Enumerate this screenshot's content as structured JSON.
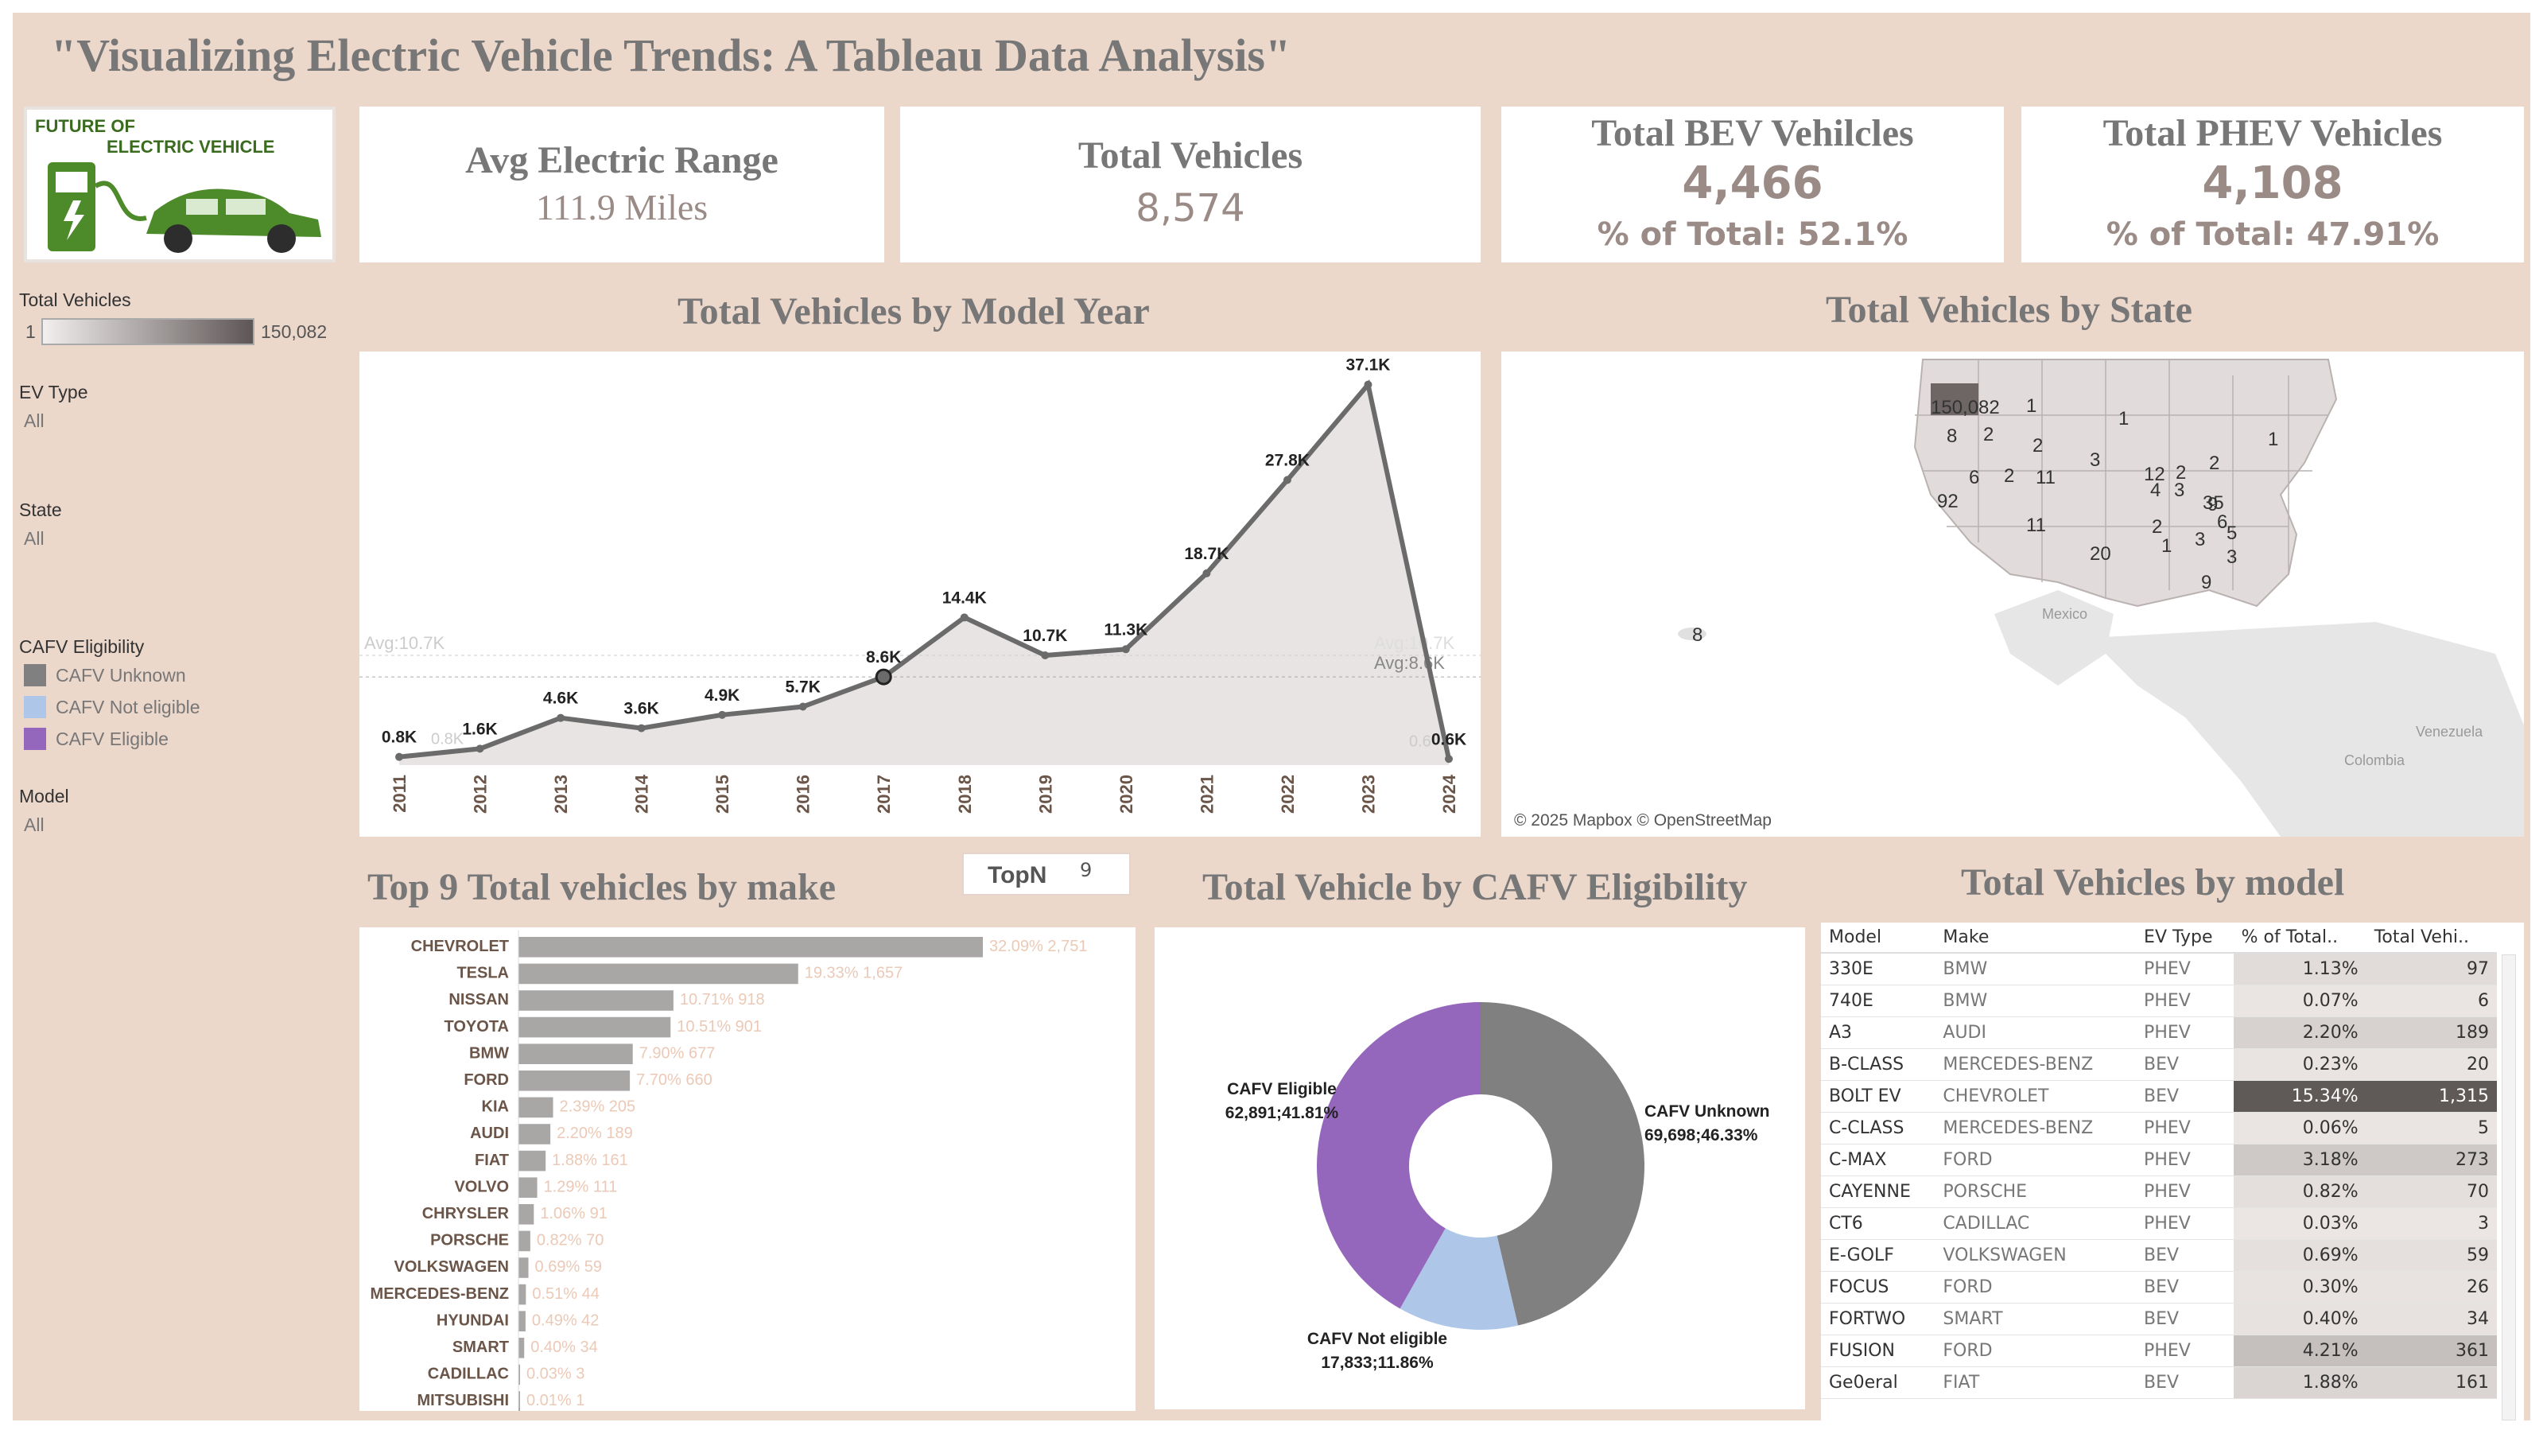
{
  "dashboard": {
    "title": "\"Visualizing Electric Vehicle Trends: A Tableau Data Analysis\""
  },
  "logo": {
    "line1": "FUTURE OF",
    "line2": "ELECTRIC VEHICLE"
  },
  "kpis": {
    "range_title": "Avg Electric Range",
    "range_value": "111.9 Miles",
    "total_title": "Total Vehicles",
    "total_value": "8,574",
    "bev_title": "Total BEV Vehilcles",
    "bev_value": "4,466",
    "bev_pct": "% of Total: 52.1%",
    "phev_title": "Total PHEV Vehicles",
    "phev_value": "4,108",
    "phev_pct": "% of Total: 47.91%"
  },
  "filters": {
    "total_vehicles_label": "Total Vehicles",
    "range_min": "1",
    "range_max": "150,082",
    "ev_type_label": "EV Type",
    "ev_type_value": "All",
    "state_label": "State",
    "state_value": "All",
    "cafv_label": "CAFV Eligibility",
    "cafv_items": [
      {
        "label": "CAFV Unknown",
        "color": "#808080"
      },
      {
        "label": "CAFV Not eligible",
        "color": "#aec7e8"
      },
      {
        "label": "CAFV Eligible",
        "color": "#9467bd"
      }
    ],
    "model_label": "Model",
    "model_value": "All"
  },
  "line_section": {
    "title": "Total Vehicles by Model Year",
    "avg_left": "Avg:10.7K",
    "avg_right_faded": "Avg:10.7K",
    "avg_right": "Avg:8.6K",
    "faded_start": "0.8K",
    "faded_end": "0.6"
  },
  "map_section": {
    "title": "Total Vehicles by State",
    "credit": "© 2025 Mapbox © OpenStreetMap",
    "places": [
      "Mexico",
      "Venezuela",
      "Colombia"
    ],
    "labels": [
      "150,082",
      "1",
      "8",
      "2",
      "2",
      "1",
      "6",
      "2",
      "11",
      "3",
      "12",
      "2",
      "2",
      "1",
      "9",
      "92",
      "4",
      "3",
      "35",
      "11",
      "2",
      "6",
      "20",
      "1",
      "3",
      "5",
      "3",
      "9",
      "8"
    ]
  },
  "bar_section": {
    "title": "Top 9 Total vehicles by make",
    "topn_label": "TopN",
    "topn_value": "9"
  },
  "pie_section": {
    "title": "Total Vehicle by CAFV Eligibility"
  },
  "table_section": {
    "title": "Total Vehicles by model",
    "columns": [
      "Model",
      "Make",
      "EV Type",
      "% of Total..",
      "Total Vehi.."
    ],
    "rows": [
      [
        "330E",
        "BMW",
        "PHEV",
        "1.13%",
        "97"
      ],
      [
        "740E",
        "BMW",
        "PHEV",
        "0.07%",
        "6"
      ],
      [
        "A3",
        "AUDI",
        "PHEV",
        "2.20%",
        "189"
      ],
      [
        "B-CLASS",
        "MERCEDES-BENZ",
        "BEV",
        "0.23%",
        "20"
      ],
      [
        "BOLT EV",
        "CHEVROLET",
        "BEV",
        "15.34%",
        "1,315"
      ],
      [
        "C-CLASS",
        "MERCEDES-BENZ",
        "PHEV",
        "0.06%",
        "5"
      ],
      [
        "C-MAX",
        "FORD",
        "PHEV",
        "3.18%",
        "273"
      ],
      [
        "CAYENNE",
        "PORSCHE",
        "PHEV",
        "0.82%",
        "70"
      ],
      [
        "CT6",
        "CADILLAC",
        "PHEV",
        "0.03%",
        "3"
      ],
      [
        "E-GOLF",
        "VOLKSWAGEN",
        "BEV",
        "0.69%",
        "59"
      ],
      [
        "FOCUS",
        "FORD",
        "BEV",
        "0.30%",
        "26"
      ],
      [
        "FORTWO",
        "SMART",
        "BEV",
        "0.40%",
        "34"
      ],
      [
        "FUSION",
        "FORD",
        "PHEV",
        "4.21%",
        "361"
      ],
      [
        "Ge0eral",
        "FIAT",
        "BEV",
        "1.88%",
        "161"
      ]
    ]
  },
  "chart_data": [
    {
      "type": "line",
      "title": "Total Vehicles by Model Year",
      "x": [
        "2011",
        "2012",
        "2013",
        "2014",
        "2015",
        "2016",
        "2017",
        "2018",
        "2019",
        "2020",
        "2021",
        "2022",
        "2023",
        "2024"
      ],
      "values": [
        0.8,
        1.6,
        4.6,
        3.6,
        4.9,
        5.7,
        8.6,
        14.4,
        10.7,
        11.3,
        18.7,
        27.8,
        37.1,
        0.6
      ],
      "labels": [
        "0.8K",
        "1.6K",
        "4.6K",
        "3.6K",
        "4.9K",
        "5.7K",
        "8.6K",
        "14.4K",
        "10.7K",
        "11.3K",
        "18.7K",
        "27.8K",
        "37.1K",
        "0.6K"
      ],
      "unit": "K",
      "ylim": [
        0,
        38
      ],
      "reference_lines": [
        {
          "label": "Avg:10.7K",
          "value": 10.7
        },
        {
          "label": "Avg:8.6K",
          "value": 8.6
        }
      ],
      "highlight": "2017"
    },
    {
      "type": "bar",
      "title": "Top 9 Total vehicles by make",
      "categories": [
        "CHEVROLET",
        "TESLA",
        "NISSAN",
        "TOYOTA",
        "BMW",
        "FORD",
        "KIA",
        "AUDI",
        "FIAT",
        "VOLVO",
        "CHRYSLER",
        "PORSCHE",
        "VOLKSWAGEN",
        "MERCEDES-BENZ",
        "HYUNDAI",
        "SMART",
        "CADILLAC",
        "MITSUBISHI"
      ],
      "values": [
        2751,
        1657,
        918,
        901,
        677,
        660,
        205,
        189,
        161,
        111,
        91,
        70,
        59,
        44,
        42,
        34,
        3,
        1
      ],
      "labels": [
        "32.09% 2,751",
        "19.33% 1,657",
        "10.71% 918",
        "10.51% 901",
        "7.90% 677",
        "7.70% 660",
        "2.39% 205",
        "2.20% 189",
        "1.88% 161",
        "1.29% 111",
        "1.06% 91",
        "0.82% 70",
        "0.69% 59",
        "0.51% 44",
        "0.49% 42",
        "0.40% 34",
        "0.03% 3",
        "0.01% 1"
      ],
      "xlim": [
        0,
        2751
      ]
    },
    {
      "type": "pie",
      "title": "Total Vehicle by CAFV Eligibility",
      "slices": [
        {
          "name": "CAFV Unknown",
          "value": 69698,
          "label": "69,698;46.33%",
          "color": "#808080"
        },
        {
          "name": "CAFV Not eligible",
          "value": 17833,
          "label": "17,833;11.86%",
          "color": "#aec7e8"
        },
        {
          "name": "CAFV Eligible",
          "value": 62891,
          "label": "62,891;41.81%",
          "color": "#9467bd"
        }
      ],
      "donut": true
    }
  ]
}
